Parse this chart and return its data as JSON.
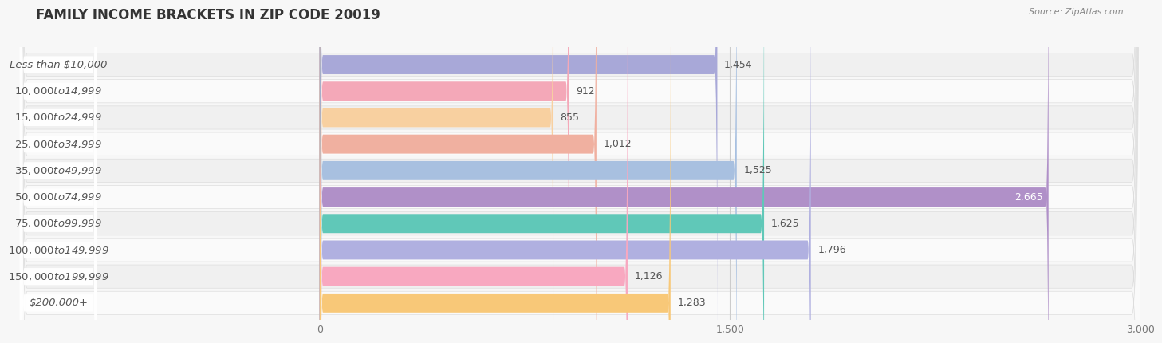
{
  "title": "FAMILY INCOME BRACKETS IN ZIP CODE 20019",
  "source": "Source: ZipAtlas.com",
  "categories": [
    "Less than $10,000",
    "$10,000 to $14,999",
    "$15,000 to $24,999",
    "$25,000 to $34,999",
    "$35,000 to $49,999",
    "$50,000 to $74,999",
    "$75,000 to $99,999",
    "$100,000 to $149,999",
    "$150,000 to $199,999",
    "$200,000+"
  ],
  "values": [
    1454,
    912,
    855,
    1012,
    1525,
    2665,
    1625,
    1796,
    1126,
    1283
  ],
  "bar_colors": [
    "#a8a8d8",
    "#f4a8b8",
    "#f8d0a0",
    "#f0b0a0",
    "#a8c0e0",
    "#b090c8",
    "#60c8b8",
    "#b0b0e0",
    "#f8a8c0",
    "#f8c878"
  ],
  "xlim_left": -1100,
  "xlim_right": 3000,
  "xticks": [
    0,
    1500,
    3000
  ],
  "background_color": "#f7f7f7",
  "bar_background": "#e8e8e8",
  "row_bg_odd": "#f0f0f0",
  "row_bg_even": "#fafafa",
  "label_pill_color": "#ffffff",
  "label_text_color": "#555555",
  "value_color": "#555555",
  "value_color_white": "#ffffff",
  "white_label_threshold": 2600,
  "bar_height": 0.72,
  "title_fontsize": 12,
  "label_fontsize": 9.5,
  "value_fontsize": 9,
  "tick_fontsize": 9
}
